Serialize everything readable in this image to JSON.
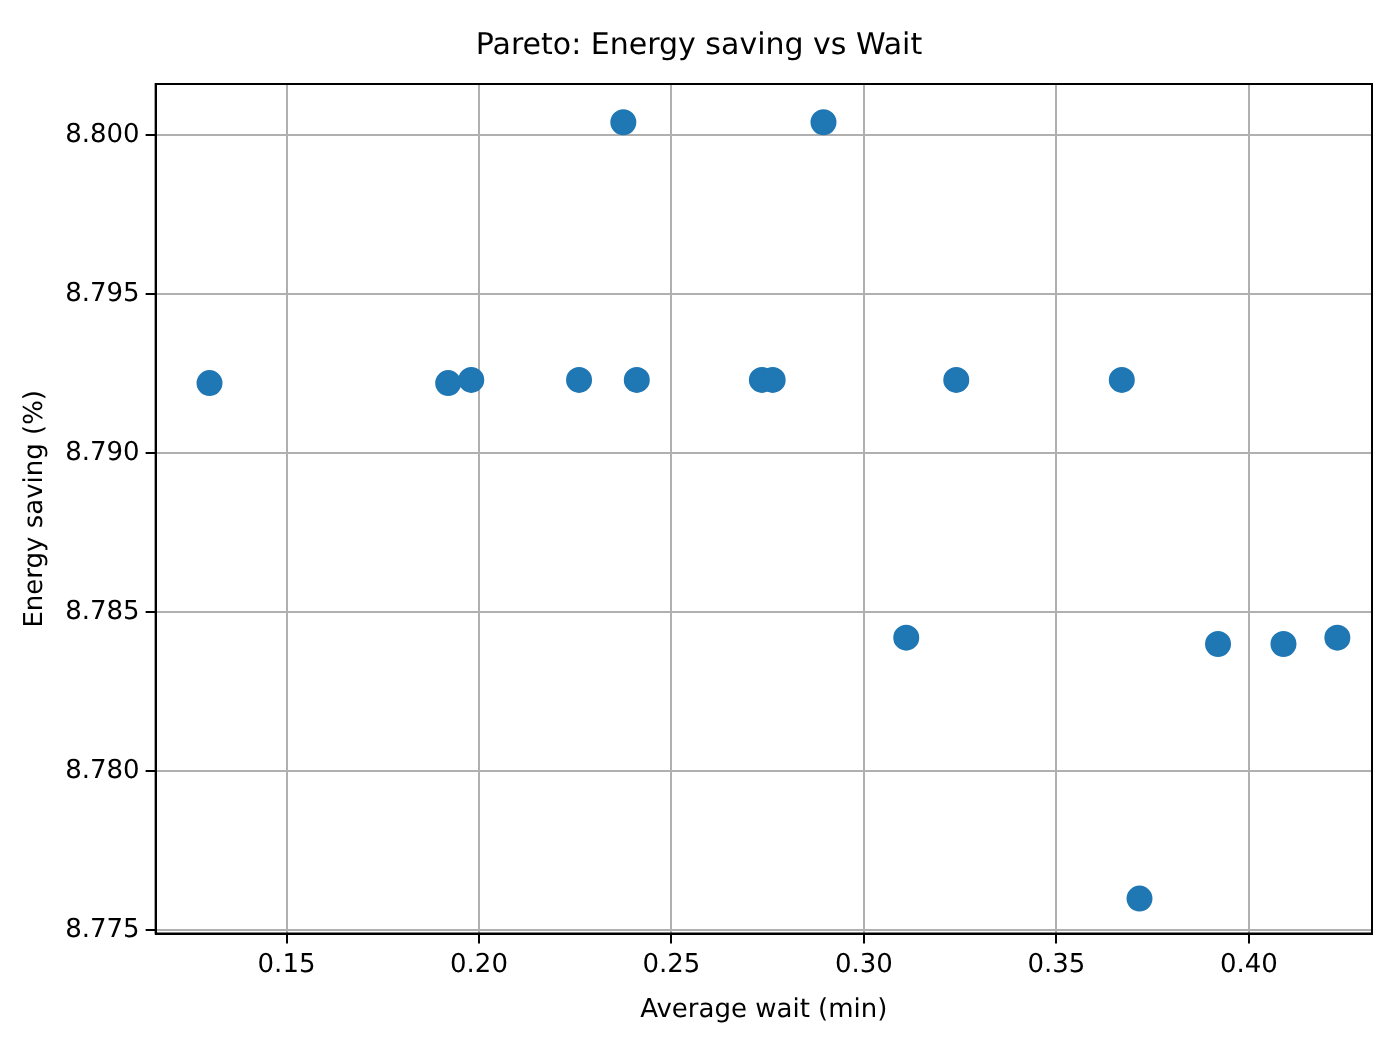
{
  "chart_data": {
    "type": "scatter",
    "title": "Pareto: Energy saving vs Wait",
    "xlabel": "Average wait (min)",
    "ylabel": "Energy saving (%)",
    "x": [
      0.13,
      0.192,
      0.198,
      0.226,
      0.2375,
      0.241,
      0.2735,
      0.2763,
      0.2895,
      0.311,
      0.324,
      0.367,
      0.3716,
      0.392,
      0.409,
      0.423
    ],
    "series": [
      {
        "color": "#1f77b4",
        "values": [
          8.7922,
          8.7922,
          8.7923,
          8.7923,
          8.8004,
          8.7923,
          8.7923,
          8.7923,
          8.8004,
          8.7842,
          8.7923,
          8.7923,
          8.776,
          8.784,
          8.784,
          8.7842
        ]
      }
    ],
    "xlim": [
      0.116,
      0.432
    ],
    "ylim": [
      8.7749,
      8.8016
    ],
    "xticks": [
      {
        "value": 0.15,
        "label": "0.15"
      },
      {
        "value": 0.2,
        "label": "0.20"
      },
      {
        "value": 0.25,
        "label": "0.25"
      },
      {
        "value": 0.3,
        "label": "0.30"
      },
      {
        "value": 0.35,
        "label": "0.35"
      },
      {
        "value": 0.4,
        "label": "0.40"
      }
    ],
    "yticks": [
      {
        "value": 8.775,
        "label": "8.775"
      },
      {
        "value": 8.78,
        "label": "8.780"
      },
      {
        "value": 8.785,
        "label": "8.785"
      },
      {
        "value": 8.79,
        "label": "8.790"
      },
      {
        "value": 8.795,
        "label": "8.795"
      },
      {
        "value": 8.8,
        "label": "8.800"
      }
    ],
    "grid": true,
    "legend": false,
    "marker": "circle"
  }
}
